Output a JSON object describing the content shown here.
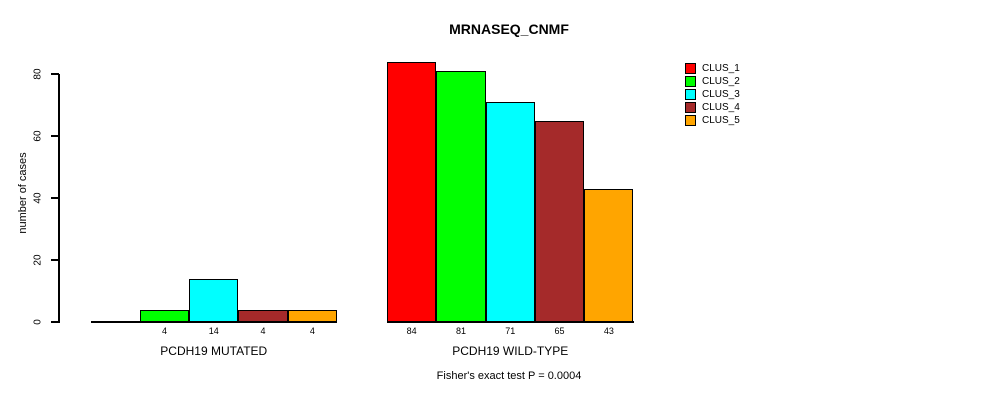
{
  "chart_data": {
    "type": "bar",
    "title": "MRNASEQ_CNMF",
    "subtitle": "Fisher's exact test P = 0.0004",
    "xlabel": "",
    "ylabel": "number of cases",
    "categories": [
      "PCDH19 MUTATED",
      "PCDH19 WILD-TYPE"
    ],
    "series": [
      {
        "name": "CLUS_1",
        "color": "#FF0000",
        "values": [
          0,
          84
        ],
        "labels": [
          "",
          "84"
        ]
      },
      {
        "name": "CLUS_2",
        "color": "#00FF00",
        "values": [
          4,
          81
        ],
        "labels": [
          "4",
          "81"
        ]
      },
      {
        "name": "CLUS_3",
        "color": "#00FFFF",
        "values": [
          14,
          71
        ],
        "labels": [
          "14",
          "71"
        ]
      },
      {
        "name": "CLUS_4",
        "color": "#A52A2A",
        "values": [
          4,
          65
        ],
        "labels": [
          "4",
          "65"
        ]
      },
      {
        "name": "CLUS_5",
        "color": "#FFA500",
        "values": [
          4,
          43
        ],
        "labels": [
          "4",
          "43"
        ]
      }
    ],
    "yticks": [
      0,
      20,
      40,
      60,
      80
    ],
    "ylim": [
      0,
      85
    ],
    "grid": false,
    "legend": {
      "position": "right",
      "entries": [
        "CLUS_1",
        "CLUS_2",
        "CLUS_3",
        "CLUS_4",
        "CLUS_5"
      ]
    }
  }
}
